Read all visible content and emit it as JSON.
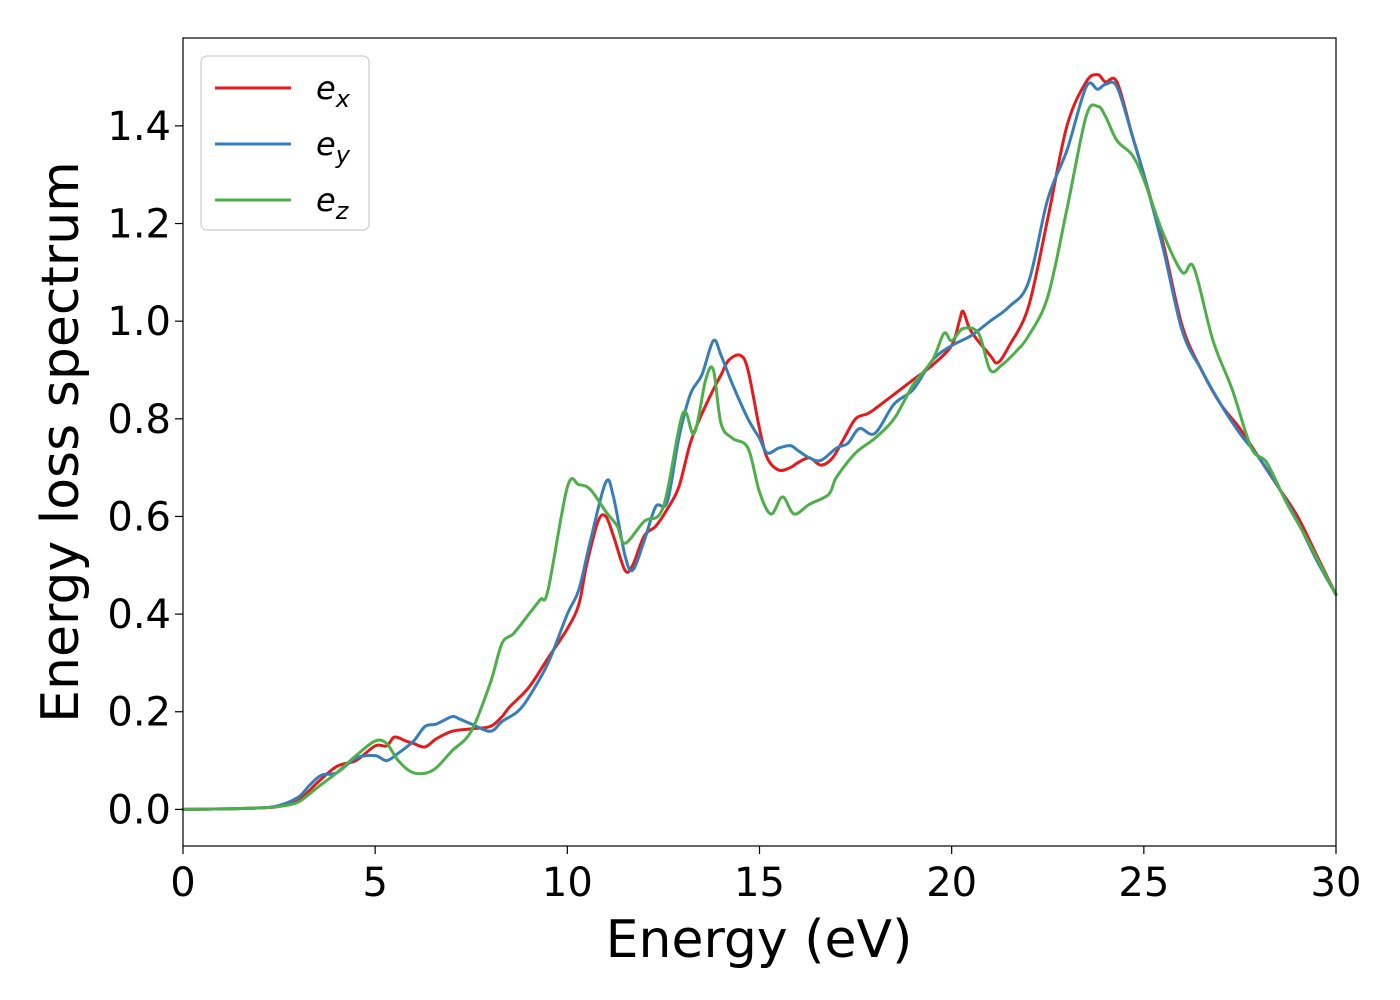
{
  "chart_data": {
    "type": "line",
    "title": "",
    "xlabel": "Energy (eV)",
    "ylabel": "Energy loss spectrum",
    "xlim": [
      0,
      30
    ],
    "ylim": [
      -0.075,
      1.58
    ],
    "xticks": [
      0,
      5,
      10,
      15,
      20,
      25,
      30
    ],
    "yticks": [
      0.0,
      0.2,
      0.4,
      0.6,
      0.8,
      1.0,
      1.2,
      1.4
    ],
    "xtick_labels": [
      "0",
      "5",
      "10",
      "15",
      "20",
      "25",
      "30"
    ],
    "ytick_labels": [
      "0.0",
      "0.2",
      "0.4",
      "0.6",
      "0.8",
      "1.0",
      "1.2",
      "1.4"
    ],
    "grid": false,
    "legend_position": "upper-left",
    "series": [
      {
        "name": "e_x",
        "label_base": "e",
        "label_sub": "x",
        "color": "#e41a1c",
        "points": [
          [
            0,
            0.0
          ],
          [
            1,
            0.001
          ],
          [
            2,
            0.003
          ],
          [
            2.5,
            0.006
          ],
          [
            3,
            0.018
          ],
          [
            3.5,
            0.055
          ],
          [
            4,
            0.088
          ],
          [
            4.5,
            0.1
          ],
          [
            5,
            0.13
          ],
          [
            5.3,
            0.13
          ],
          [
            5.5,
            0.148
          ],
          [
            5.8,
            0.14
          ],
          [
            6,
            0.135
          ],
          [
            6.3,
            0.128
          ],
          [
            6.6,
            0.145
          ],
          [
            7,
            0.16
          ],
          [
            7.5,
            0.165
          ],
          [
            8,
            0.17
          ],
          [
            8.3,
            0.19
          ],
          [
            8.5,
            0.21
          ],
          [
            9,
            0.25
          ],
          [
            9.5,
            0.31
          ],
          [
            10,
            0.37
          ],
          [
            10.3,
            0.42
          ],
          [
            10.5,
            0.5
          ],
          [
            10.8,
            0.59
          ],
          [
            11,
            0.6
          ],
          [
            11.2,
            0.56
          ],
          [
            11.5,
            0.49
          ],
          [
            11.7,
            0.5
          ],
          [
            12,
            0.56
          ],
          [
            12.3,
            0.58
          ],
          [
            12.6,
            0.615
          ],
          [
            12.9,
            0.66
          ],
          [
            13.2,
            0.75
          ],
          [
            13.5,
            0.81
          ],
          [
            13.8,
            0.86
          ],
          [
            14,
            0.89
          ],
          [
            14.2,
            0.92
          ],
          [
            14.5,
            0.93
          ],
          [
            14.7,
            0.9
          ],
          [
            15,
            0.78
          ],
          [
            15.2,
            0.72
          ],
          [
            15.5,
            0.695
          ],
          [
            15.8,
            0.7
          ],
          [
            16,
            0.71
          ],
          [
            16.3,
            0.72
          ],
          [
            16.6,
            0.705
          ],
          [
            16.9,
            0.72
          ],
          [
            17.2,
            0.76
          ],
          [
            17.5,
            0.8
          ],
          [
            17.8,
            0.81
          ],
          [
            18,
            0.82
          ],
          [
            18.5,
            0.85
          ],
          [
            19,
            0.88
          ],
          [
            19.5,
            0.91
          ],
          [
            20,
            0.95
          ],
          [
            20.2,
            1.0
          ],
          [
            20.3,
            1.02
          ],
          [
            20.5,
            0.98
          ],
          [
            21,
            0.93
          ],
          [
            21.2,
            0.915
          ],
          [
            21.5,
            0.95
          ],
          [
            22,
            1.03
          ],
          [
            22.5,
            1.21
          ],
          [
            23,
            1.4
          ],
          [
            23.5,
            1.49
          ],
          [
            23.8,
            1.505
          ],
          [
            24,
            1.49
          ],
          [
            24.3,
            1.49
          ],
          [
            24.7,
            1.38
          ],
          [
            25,
            1.3
          ],
          [
            25.5,
            1.16
          ],
          [
            26,
            0.99
          ],
          [
            26.5,
            0.9
          ],
          [
            27,
            0.83
          ],
          [
            27.5,
            0.78
          ],
          [
            28,
            0.72
          ],
          [
            28.5,
            0.66
          ],
          [
            29,
            0.6
          ],
          [
            29.5,
            0.52
          ],
          [
            30,
            0.44
          ]
        ]
      },
      {
        "name": "e_y",
        "label_base": "e",
        "label_sub": "y",
        "color": "#377eb8",
        "points": [
          [
            0,
            0.0
          ],
          [
            1,
            0.001
          ],
          [
            2,
            0.003
          ],
          [
            2.5,
            0.008
          ],
          [
            3,
            0.025
          ],
          [
            3.3,
            0.05
          ],
          [
            3.6,
            0.07
          ],
          [
            4,
            0.075
          ],
          [
            4.5,
            0.105
          ],
          [
            5,
            0.11
          ],
          [
            5.3,
            0.1
          ],
          [
            5.6,
            0.115
          ],
          [
            6,
            0.14
          ],
          [
            6.3,
            0.17
          ],
          [
            6.6,
            0.175
          ],
          [
            7,
            0.19
          ],
          [
            7.2,
            0.185
          ],
          [
            7.5,
            0.175
          ],
          [
            8,
            0.16
          ],
          [
            8.3,
            0.18
          ],
          [
            8.7,
            0.2
          ],
          [
            9,
            0.23
          ],
          [
            9.5,
            0.3
          ],
          [
            10,
            0.4
          ],
          [
            10.3,
            0.45
          ],
          [
            10.6,
            0.55
          ],
          [
            11,
            0.67
          ],
          [
            11.2,
            0.64
          ],
          [
            11.5,
            0.52
          ],
          [
            11.7,
            0.49
          ],
          [
            12,
            0.55
          ],
          [
            12.3,
            0.62
          ],
          [
            12.6,
            0.63
          ],
          [
            12.9,
            0.76
          ],
          [
            13.2,
            0.85
          ],
          [
            13.5,
            0.89
          ],
          [
            13.8,
            0.96
          ],
          [
            14,
            0.93
          ],
          [
            14.3,
            0.87
          ],
          [
            14.7,
            0.8
          ],
          [
            15,
            0.76
          ],
          [
            15.2,
            0.73
          ],
          [
            15.5,
            0.74
          ],
          [
            15.8,
            0.745
          ],
          [
            16,
            0.735
          ],
          [
            16.3,
            0.72
          ],
          [
            16.6,
            0.715
          ],
          [
            17,
            0.74
          ],
          [
            17.3,
            0.75
          ],
          [
            17.6,
            0.78
          ],
          [
            18,
            0.77
          ],
          [
            18.5,
            0.83
          ],
          [
            19,
            0.86
          ],
          [
            19.5,
            0.92
          ],
          [
            20,
            0.95
          ],
          [
            20.5,
            0.97
          ],
          [
            21,
            1.0
          ],
          [
            21.5,
            1.03
          ],
          [
            22,
            1.08
          ],
          [
            22.5,
            1.25
          ],
          [
            23,
            1.35
          ],
          [
            23.5,
            1.48
          ],
          [
            23.8,
            1.475
          ],
          [
            24,
            1.485
          ],
          [
            24.3,
            1.48
          ],
          [
            24.7,
            1.38
          ],
          [
            25,
            1.3
          ],
          [
            25.5,
            1.15
          ],
          [
            26,
            0.98
          ],
          [
            26.5,
            0.9
          ],
          [
            27,
            0.83
          ],
          [
            27.5,
            0.77
          ],
          [
            28,
            0.72
          ],
          [
            28.5,
            0.66
          ],
          [
            29,
            0.59
          ],
          [
            29.5,
            0.51
          ],
          [
            30,
            0.44
          ]
        ]
      },
      {
        "name": "e_z",
        "label_base": "e",
        "label_sub": "z",
        "color": "#4daf4a",
        "points": [
          [
            0,
            0.0
          ],
          [
            1,
            0.001
          ],
          [
            2,
            0.003
          ],
          [
            2.5,
            0.006
          ],
          [
            3,
            0.015
          ],
          [
            3.5,
            0.045
          ],
          [
            4,
            0.075
          ],
          [
            4.5,
            0.11
          ],
          [
            5,
            0.14
          ],
          [
            5.3,
            0.135
          ],
          [
            5.6,
            0.1
          ],
          [
            6,
            0.075
          ],
          [
            6.5,
            0.08
          ],
          [
            7,
            0.12
          ],
          [
            7.5,
            0.16
          ],
          [
            8,
            0.26
          ],
          [
            8.3,
            0.34
          ],
          [
            8.6,
            0.36
          ],
          [
            9,
            0.4
          ],
          [
            9.3,
            0.43
          ],
          [
            9.5,
            0.45
          ],
          [
            10,
            0.66
          ],
          [
            10.3,
            0.665
          ],
          [
            10.6,
            0.655
          ],
          [
            11,
            0.61
          ],
          [
            11.3,
            0.58
          ],
          [
            11.5,
            0.545
          ],
          [
            12,
            0.59
          ],
          [
            12.5,
            0.62
          ],
          [
            13,
            0.81
          ],
          [
            13.3,
            0.77
          ],
          [
            13.6,
            0.88
          ],
          [
            13.8,
            0.9
          ],
          [
            14,
            0.79
          ],
          [
            14.3,
            0.76
          ],
          [
            14.7,
            0.74
          ],
          [
            15,
            0.65
          ],
          [
            15.3,
            0.605
          ],
          [
            15.6,
            0.64
          ],
          [
            15.9,
            0.605
          ],
          [
            16.3,
            0.625
          ],
          [
            16.8,
            0.645
          ],
          [
            17,
            0.68
          ],
          [
            17.5,
            0.73
          ],
          [
            18,
            0.76
          ],
          [
            18.5,
            0.8
          ],
          [
            19,
            0.87
          ],
          [
            19.5,
            0.92
          ],
          [
            19.8,
            0.975
          ],
          [
            20,
            0.96
          ],
          [
            20.3,
            0.985
          ],
          [
            20.7,
            0.975
          ],
          [
            21,
            0.9
          ],
          [
            21.3,
            0.91
          ],
          [
            21.7,
            0.94
          ],
          [
            22,
            0.97
          ],
          [
            22.5,
            1.05
          ],
          [
            23,
            1.23
          ],
          [
            23.5,
            1.42
          ],
          [
            23.8,
            1.44
          ],
          [
            24,
            1.42
          ],
          [
            24.3,
            1.37
          ],
          [
            24.7,
            1.34
          ],
          [
            25,
            1.29
          ],
          [
            25.5,
            1.18
          ],
          [
            26,
            1.1
          ],
          [
            26.3,
            1.11
          ],
          [
            26.8,
            0.96
          ],
          [
            27.3,
            0.86
          ],
          [
            27.8,
            0.74
          ],
          [
            28.2,
            0.71
          ],
          [
            28.7,
            0.63
          ],
          [
            29.2,
            0.56
          ],
          [
            29.6,
            0.5
          ],
          [
            30,
            0.44
          ]
        ]
      }
    ]
  }
}
